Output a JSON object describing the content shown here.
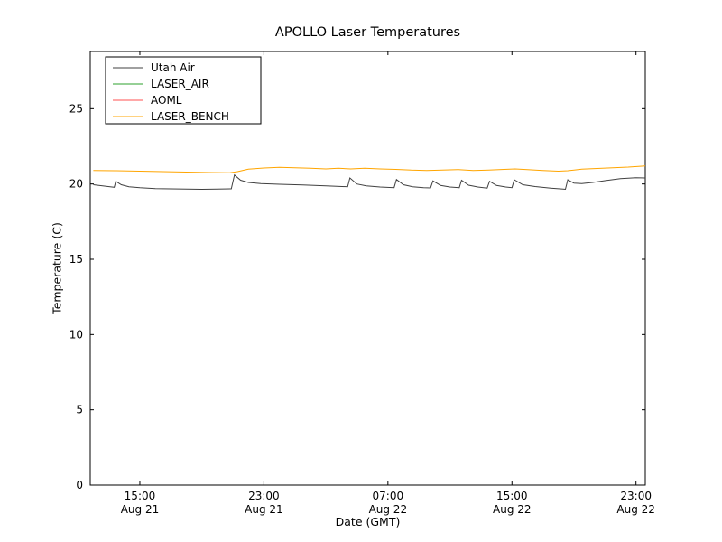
{
  "chart_data": {
    "type": "line",
    "title": "APOLLO Laser Temperatures",
    "xlabel": "Date (GMT)",
    "ylabel": "Temperature (C)",
    "x_encoding": "hours since Aug 21 00:00 GMT",
    "xlim": [
      11.8,
      47.6
    ],
    "ylim": [
      0,
      28.8
    ],
    "yticks": [
      0,
      5,
      10,
      15,
      20,
      25
    ],
    "xticks": [
      {
        "value": 15,
        "time": "15:00",
        "date": "Aug 21"
      },
      {
        "value": 23,
        "time": "23:00",
        "date": "Aug 21"
      },
      {
        "value": 31,
        "time": "07:00",
        "date": "Aug 22"
      },
      {
        "value": 39,
        "time": "15:00",
        "date": "Aug 22"
      },
      {
        "value": 47,
        "time": "23:00",
        "date": "Aug 22"
      }
    ],
    "grid": false,
    "legend_position": "upper left",
    "series": [
      {
        "name": "Utah Air",
        "color": "#404040",
        "points": [
          [
            12.0,
            19.95
          ],
          [
            12.6,
            19.88
          ],
          [
            13.2,
            19.8
          ],
          [
            13.35,
            19.78
          ],
          [
            13.45,
            20.18
          ],
          [
            13.8,
            19.95
          ],
          [
            14.3,
            19.82
          ],
          [
            15.0,
            19.75
          ],
          [
            16.0,
            19.7
          ],
          [
            17.0,
            19.68
          ],
          [
            18.0,
            19.66
          ],
          [
            19.0,
            19.65
          ],
          [
            20.0,
            19.66
          ],
          [
            20.9,
            19.68
          ],
          [
            21.1,
            20.6
          ],
          [
            21.5,
            20.25
          ],
          [
            22.0,
            20.1
          ],
          [
            22.8,
            20.03
          ],
          [
            24.0,
            19.98
          ],
          [
            25.5,
            19.93
          ],
          [
            27.0,
            19.88
          ],
          [
            28.4,
            19.82
          ],
          [
            28.55,
            20.4
          ],
          [
            29.0,
            20.0
          ],
          [
            29.6,
            19.88
          ],
          [
            30.5,
            19.8
          ],
          [
            31.4,
            19.76
          ],
          [
            31.55,
            20.3
          ],
          [
            32.0,
            19.95
          ],
          [
            32.6,
            19.82
          ],
          [
            33.3,
            19.76
          ],
          [
            33.75,
            19.74
          ],
          [
            33.9,
            20.2
          ],
          [
            34.4,
            19.9
          ],
          [
            35.0,
            19.8
          ],
          [
            35.6,
            19.75
          ],
          [
            35.75,
            20.25
          ],
          [
            36.2,
            19.92
          ],
          [
            36.8,
            19.8
          ],
          [
            37.4,
            19.73
          ],
          [
            37.55,
            20.18
          ],
          [
            38.0,
            19.9
          ],
          [
            38.6,
            19.8
          ],
          [
            39.0,
            19.76
          ],
          [
            39.15,
            20.28
          ],
          [
            39.7,
            19.95
          ],
          [
            40.5,
            19.83
          ],
          [
            41.5,
            19.73
          ],
          [
            42.3,
            19.67
          ],
          [
            42.45,
            19.65
          ],
          [
            42.6,
            20.28
          ],
          [
            43.0,
            20.05
          ],
          [
            43.5,
            20.02
          ],
          [
            44.2,
            20.1
          ],
          [
            45.0,
            20.22
          ],
          [
            46.0,
            20.35
          ],
          [
            47.0,
            20.42
          ],
          [
            47.6,
            20.4
          ]
        ]
      },
      {
        "name": "LASER_AIR",
        "color": "#2ca02c",
        "points": []
      },
      {
        "name": "AOML",
        "color": "#ff5050",
        "points": []
      },
      {
        "name": "LASER_BENCH",
        "color": "#ffa500",
        "points": [
          [
            12.0,
            20.9
          ],
          [
            13.5,
            20.88
          ],
          [
            15.0,
            20.85
          ],
          [
            16.5,
            20.82
          ],
          [
            18.0,
            20.79
          ],
          [
            19.5,
            20.76
          ],
          [
            20.8,
            20.74
          ],
          [
            21.3,
            20.82
          ],
          [
            22.0,
            20.98
          ],
          [
            23.0,
            21.06
          ],
          [
            24.0,
            21.1
          ],
          [
            25.0,
            21.08
          ],
          [
            26.0,
            21.04
          ],
          [
            27.0,
            21.0
          ],
          [
            27.8,
            21.04
          ],
          [
            28.6,
            21.0
          ],
          [
            29.5,
            21.05
          ],
          [
            30.5,
            21.0
          ],
          [
            31.5,
            20.97
          ],
          [
            32.5,
            20.92
          ],
          [
            33.5,
            20.9
          ],
          [
            34.5,
            20.93
          ],
          [
            35.5,
            20.96
          ],
          [
            36.5,
            20.9
          ],
          [
            37.5,
            20.93
          ],
          [
            38.5,
            20.97
          ],
          [
            39.2,
            21.0
          ],
          [
            40.0,
            20.96
          ],
          [
            41.0,
            20.9
          ],
          [
            42.0,
            20.85
          ],
          [
            42.6,
            20.88
          ],
          [
            43.5,
            20.98
          ],
          [
            44.5,
            21.03
          ],
          [
            45.5,
            21.07
          ],
          [
            46.5,
            21.12
          ],
          [
            47.6,
            21.2
          ]
        ]
      }
    ]
  }
}
